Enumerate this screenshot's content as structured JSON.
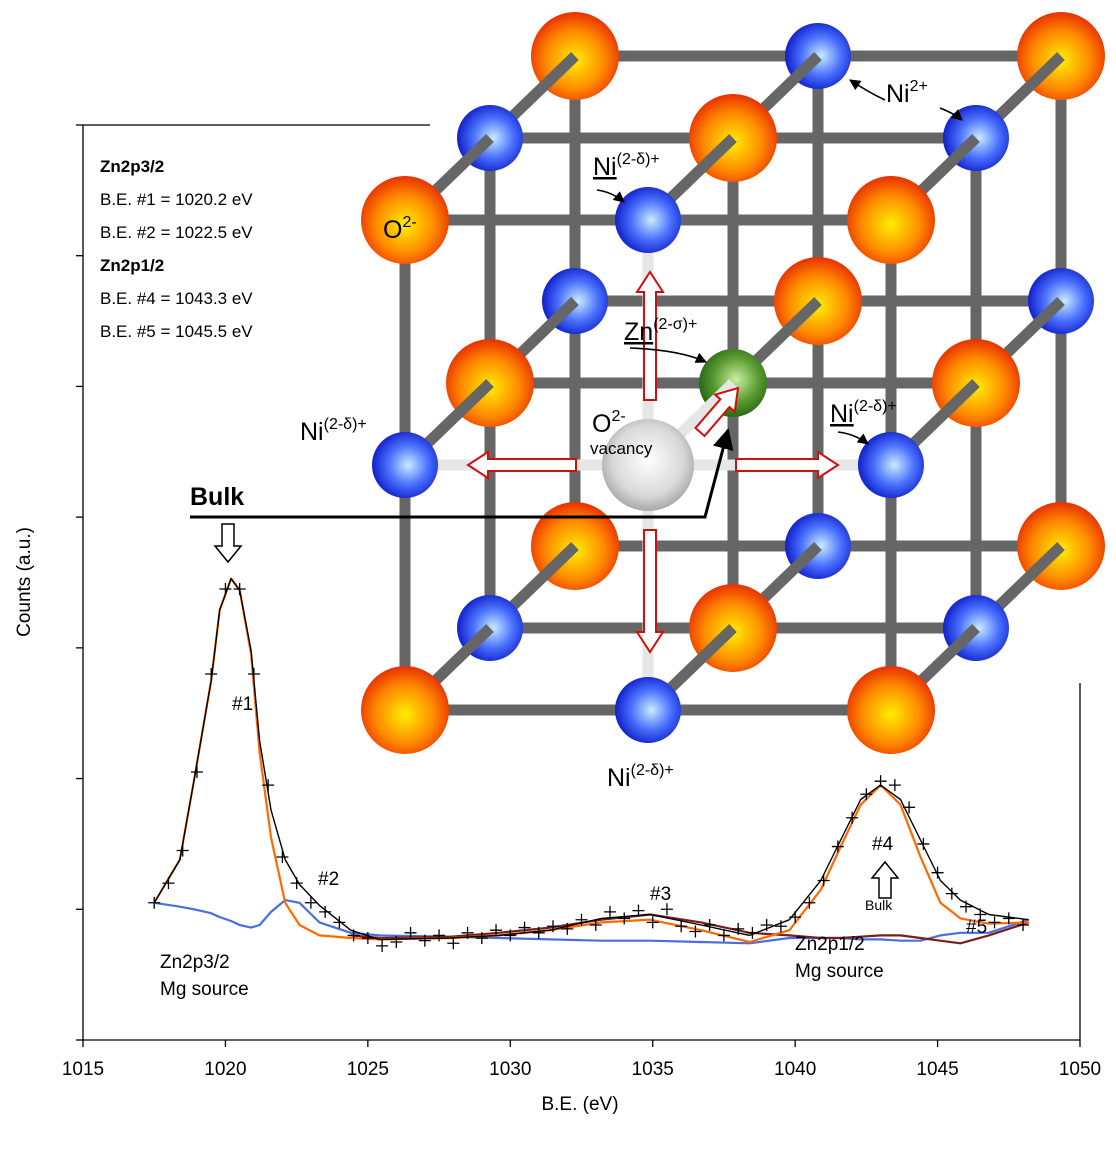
{
  "chart_data": {
    "type": "line",
    "x_label": "B.E. (eV)",
    "y_label": "Counts (a.u.)",
    "xlim": [
      1015,
      1050
    ],
    "xticks": [
      1015,
      1020,
      1025,
      1030,
      1035,
      1040,
      1045,
      1050
    ],
    "ylim": [
      0,
      7
    ],
    "yticks": [
      0,
      1,
      2,
      3,
      4,
      5,
      6,
      7
    ],
    "ytick_labels_shown": false,
    "x": [
      1017.5,
      1018.4,
      1018.9,
      1019.5,
      1019.8,
      1020.2,
      1020.5,
      1020.9,
      1021.2,
      1021.6,
      1022.1,
      1022.6,
      1023.3,
      1024.4,
      1025.4,
      1027.9,
      1029.6,
      1031.4,
      1033.2,
      1034.9,
      1036.7,
      1038.4,
      1039.8,
      1040.9,
      1041.6,
      1042.3,
      1043.0,
      1043.7,
      1044.4,
      1045.1,
      1045.8,
      1046.8,
      1048.2
    ],
    "series": [
      {
        "color": "#4a6ee0",
        "values": [
          1.05,
          1.02,
          1.0,
          0.97,
          0.94,
          0.91,
          0.88,
          0.86,
          0.88,
          0.98,
          1.07,
          1.05,
          0.9,
          0.82,
          0.8,
          0.79,
          0.78,
          0.77,
          0.76,
          0.76,
          0.75,
          0.74,
          0.78,
          0.78,
          0.78,
          0.77,
          0.77,
          0.76,
          0.76,
          0.8,
          0.82,
          0.82,
          0.92
        ]
      },
      {
        "color": "#7a1f1f",
        "values": [
          null,
          null,
          null,
          null,
          null,
          null,
          null,
          null,
          null,
          null,
          null,
          null,
          null,
          0.8,
          0.78,
          0.79,
          0.82,
          0.86,
          0.92,
          0.96,
          0.9,
          0.82,
          0.8,
          0.78,
          0.78,
          0.79,
          0.8,
          0.8,
          0.78,
          0.76,
          0.74,
          0.8,
          0.9
        ]
      },
      {
        "color": "#ff6a00",
        "values": [
          1.05,
          1.38,
          1.99,
          2.75,
          3.29,
          3.53,
          3.44,
          2.95,
          2.2,
          1.55,
          1.05,
          0.88,
          0.8,
          0.78,
          0.77,
          0.78,
          0.8,
          0.84,
          0.9,
          0.92,
          0.84,
          0.75,
          0.84,
          1.15,
          1.48,
          1.8,
          1.95,
          1.8,
          1.4,
          1.05,
          0.93,
          0.89,
          0.9
        ]
      },
      {
        "color": "#000000",
        "values": [
          1.05,
          1.38,
          1.99,
          2.75,
          3.29,
          3.53,
          3.44,
          2.98,
          2.29,
          1.76,
          1.38,
          1.19,
          1.03,
          0.84,
          0.77,
          0.78,
          0.8,
          0.84,
          0.93,
          0.96,
          0.88,
          0.8,
          0.92,
          1.22,
          1.53,
          1.84,
          1.95,
          1.84,
          1.53,
          1.22,
          1.07,
          0.96,
          0.92
        ]
      }
    ],
    "points": {
      "marker": "+",
      "color": "#000000",
      "x": [
        1017.5,
        1018.0,
        1018.5,
        1019.0,
        1019.5,
        1020.0,
        1020.5,
        1021.0,
        1021.5,
        1022.0,
        1022.5,
        1023.0,
        1023.5,
        1024.0,
        1024.5,
        1025.0,
        1025.5,
        1026.0,
        1026.5,
        1027.0,
        1027.5,
        1028.0,
        1028.5,
        1029.0,
        1029.5,
        1030.0,
        1030.5,
        1031.0,
        1031.5,
        1032.0,
        1032.5,
        1033.0,
        1033.5,
        1034.0,
        1034.5,
        1035.0,
        1035.5,
        1036.0,
        1036.5,
        1037.0,
        1037.5,
        1038.0,
        1038.5,
        1039.0,
        1039.5,
        1040.0,
        1040.5,
        1041.0,
        1041.5,
        1042.0,
        1042.5,
        1043.0,
        1043.5,
        1044.0,
        1044.5,
        1045.0,
        1045.5,
        1046.0,
        1046.5,
        1047.0,
        1047.5,
        1048.0
      ],
      "values": [
        1.05,
        1.2,
        1.45,
        2.05,
        2.8,
        3.45,
        3.45,
        2.8,
        1.95,
        1.4,
        1.2,
        1.05,
        0.98,
        0.9,
        0.8,
        0.78,
        0.72,
        0.75,
        0.82,
        0.76,
        0.8,
        0.74,
        0.82,
        0.78,
        0.84,
        0.8,
        0.86,
        0.82,
        0.87,
        0.85,
        0.92,
        0.88,
        0.98,
        0.93,
        0.99,
        0.9,
        1.0,
        0.87,
        0.83,
        0.88,
        0.8,
        0.85,
        0.82,
        0.88,
        0.87,
        0.94,
        1.05,
        1.22,
        1.48,
        1.7,
        1.88,
        1.98,
        1.95,
        1.78,
        1.5,
        1.28,
        1.12,
        1.02,
        0.96,
        0.9,
        0.93,
        0.88
      ]
    },
    "annotations": [
      {
        "lines": [
          "#1"
        ]
      },
      {
        "lines": [
          "#2"
        ]
      },
      {
        "lines": [
          "#3"
        ]
      },
      {
        "lines": [
          "#4"
        ]
      },
      {
        "lines": [
          "#5"
        ]
      },
      {
        "lines": [
          "Zn2p3/2",
          "Mg source"
        ]
      },
      {
        "lines": [
          "Zn2p1/2",
          "Mg source"
        ]
      },
      {
        "lines": [
          "Bulk"
        ]
      }
    ],
    "peak_info": [
      {
        "title": "Zn2p3/2",
        "lines": [
          "B.E. #1 = 1020.2 eV",
          "B.E. #2 = 1022.5 eV"
        ]
      },
      {
        "title": "Zn2p1/2",
        "lines": [
          "B.E. #4 = 1043.3 eV",
          "B.E. #5 = 1045.5 eV"
        ]
      }
    ]
  },
  "diagram": {
    "labels": [
      {
        "base": "O",
        "sup": "2-"
      },
      {
        "base": "Ni",
        "sup": "2+"
      },
      {
        "base": "Ni",
        "sup": "(2-δ)+"
      },
      {
        "base": "Zn",
        "sup": "(2-σ)+"
      },
      {
        "base": "Ni",
        "sup": "(2-δ)+"
      },
      {
        "base": "O",
        "sup": "2-",
        "sub": "vacancy"
      },
      {
        "base": "Ni",
        "sup": "(2-δ)+"
      },
      {
        "base": "Ni",
        "sup": "(2-δ)+"
      }
    ],
    "bulk_label": "Bulk"
  }
}
